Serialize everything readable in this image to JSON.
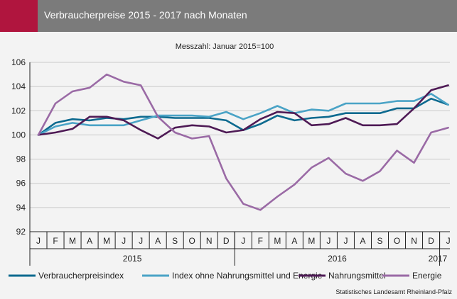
{
  "header": {
    "title": "Verbraucherpreise 2015 - 2017 nach Monaten"
  },
  "source": "Statistisches Landesamt Rheinland-Pfalz",
  "colors": {
    "header_bg": "#7b7b7b",
    "accent": "#b0153e",
    "verbraucherpreisindex": "#0d6a8f",
    "index_ohne": "#4aa3c6",
    "nahrungsmittel": "#4e1a55",
    "energie": "#9a6aa5"
  },
  "chart_data": {
    "type": "line",
    "title": "Verbraucherpreise 2015 - 2017 nach Monaten",
    "subtitle": "Messzahl: Januar 2015=100",
    "ylim": [
      92,
      106
    ],
    "yticks": [
      "92",
      "94",
      "96",
      "98",
      "100",
      "102",
      "104",
      "106"
    ],
    "grid": true,
    "legend_position": "bottom",
    "categories": [
      "J",
      "F",
      "M",
      "A",
      "M",
      "J",
      "J",
      "A",
      "S",
      "O",
      "N",
      "D",
      "J",
      "F",
      "M",
      "A",
      "M",
      "J",
      "J",
      "A",
      "S",
      "O",
      "N",
      "D",
      "J"
    ],
    "year_labels": [
      {
        "label": "2015",
        "start": 0,
        "end": 11
      },
      {
        "label": "2016",
        "start": 12,
        "end": 23
      },
      {
        "label": "2017",
        "start": 24,
        "end": 24
      }
    ],
    "series": [
      {
        "name": "Verbraucherpreisindex",
        "color": "#0d6a8f",
        "values": [
          100.0,
          101.0,
          101.3,
          101.2,
          101.4,
          101.3,
          101.5,
          101.5,
          101.4,
          101.4,
          101.4,
          101.2,
          100.4,
          100.9,
          101.6,
          101.2,
          101.4,
          101.5,
          101.8,
          101.8,
          101.8,
          102.2,
          102.2,
          103.0,
          102.5
        ]
      },
      {
        "name": "Index ohne Nahrungsmittel und Energie",
        "color": "#4aa3c6",
        "values": [
          100.0,
          100.7,
          101.0,
          100.8,
          100.8,
          100.8,
          101.2,
          101.6,
          101.6,
          101.6,
          101.5,
          101.9,
          101.3,
          101.8,
          102.4,
          101.8,
          102.1,
          102.0,
          102.6,
          102.6,
          102.6,
          102.8,
          102.8,
          103.4,
          102.5
        ]
      },
      {
        "name": "Nahrungsmittel",
        "color": "#4e1a55",
        "values": [
          100.0,
          100.2,
          100.5,
          101.5,
          101.5,
          101.2,
          100.4,
          99.7,
          100.6,
          100.8,
          100.7,
          100.2,
          100.4,
          101.3,
          101.9,
          101.8,
          100.8,
          100.9,
          101.4,
          100.8,
          100.8,
          100.9,
          102.2,
          103.7,
          104.1
        ]
      },
      {
        "name": "Energie",
        "color": "#9a6aa5",
        "values": [
          100.0,
          102.6,
          103.6,
          103.9,
          105.0,
          104.4,
          104.1,
          101.5,
          100.2,
          99.7,
          99.9,
          96.4,
          94.3,
          93.8,
          94.9,
          95.9,
          97.3,
          98.1,
          96.8,
          96.2,
          97.0,
          98.7,
          97.7,
          100.2,
          100.6
        ]
      }
    ]
  }
}
